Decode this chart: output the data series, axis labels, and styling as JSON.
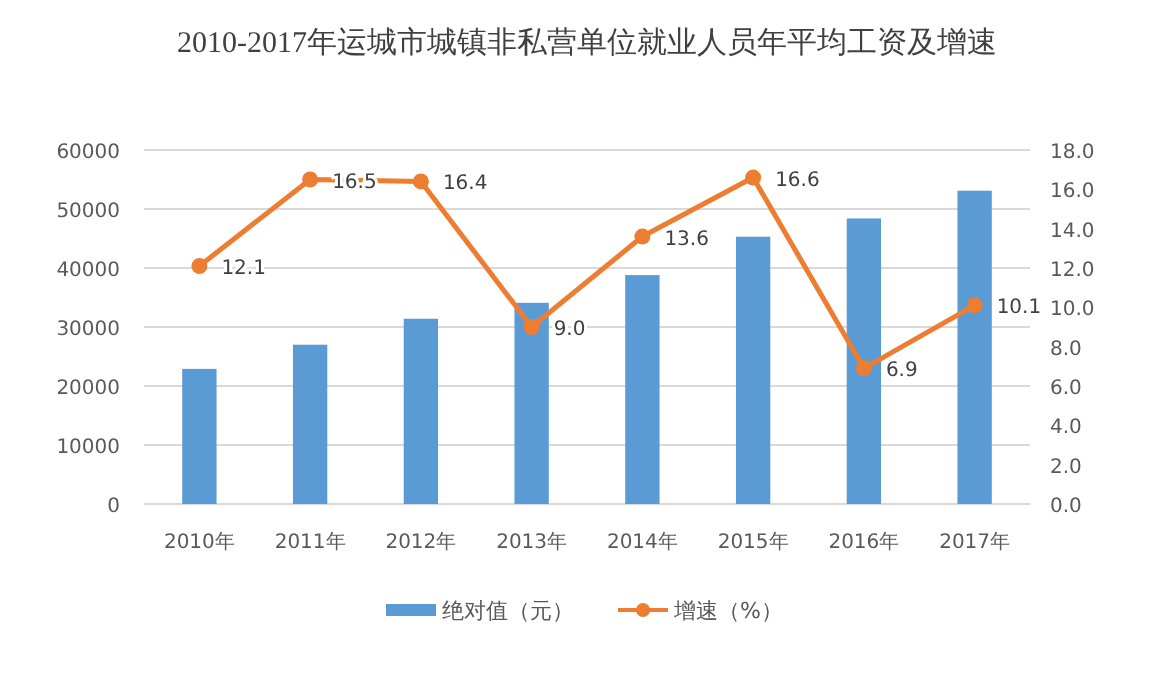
{
  "chart_data": {
    "type": "bar",
    "title": "2010-2017年运城市城镇非私营单位就业人员年平均工资及增速",
    "categories": [
      "2010年",
      "2011年",
      "2012年",
      "2013年",
      "2014年",
      "2015年",
      "2016年",
      "2017年"
    ],
    "series": [
      {
        "name": "绝对值（元）",
        "color": "#5b9bd5",
        "values": [
          22900,
          27000,
          31400,
          34100,
          38800,
          45300,
          48400,
          53100
        ]
      },
      {
        "name": "增速（%）",
        "type": "line",
        "axis": "y2",
        "color": "#ed7d31",
        "marker": "circle",
        "values": [
          12.1,
          16.5,
          16.4,
          9.0,
          13.6,
          16.6,
          6.9,
          10.1
        ],
        "value_labels": [
          "12.1",
          "16.5",
          "16.4",
          "9.0",
          "13.6",
          "16.6",
          "6.9",
          "10.1"
        ]
      }
    ],
    "ylim": [
      0,
      60000
    ],
    "yticks": [
      0,
      10000,
      20000,
      30000,
      40000,
      50000,
      60000
    ],
    "y2lim": [
      0,
      18
    ],
    "y2ticks": [
      {
        "value": 0,
        "label": "0.0"
      },
      {
        "value": 2,
        "label": "2.0"
      },
      {
        "value": 4,
        "label": "4.0"
      },
      {
        "value": 6,
        "label": "6.0"
      },
      {
        "value": 8,
        "label": "8.0"
      },
      {
        "value": 10,
        "label": "10.0"
      },
      {
        "value": 12,
        "label": "12.0"
      },
      {
        "value": 14,
        "label": "14.0"
      },
      {
        "value": 16,
        "label": "16.0"
      },
      {
        "value": 18,
        "label": "18.0"
      }
    ],
    "grid": "y",
    "legend": "bottom"
  }
}
